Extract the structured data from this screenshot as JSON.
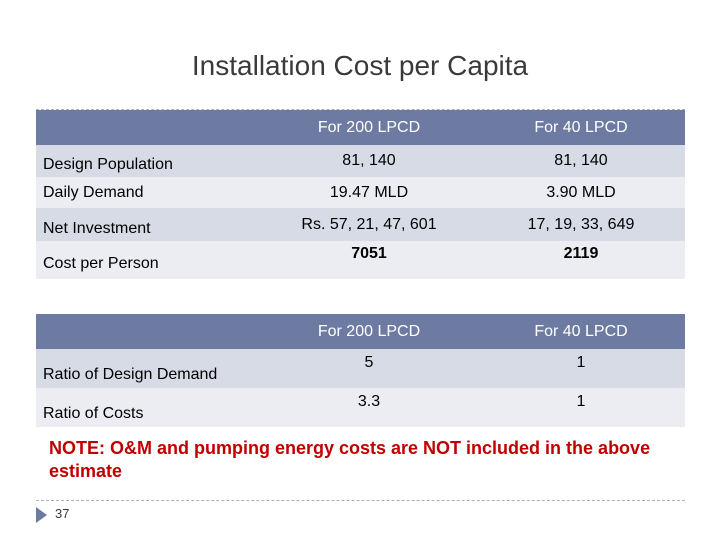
{
  "title": "Installation Cost per Capita",
  "table1": {
    "headers": [
      "",
      "For 200 LPCD",
      "For 40 LPCD"
    ],
    "rows": [
      {
        "label": "Design Population",
        "v200": "81, 140",
        "v40": "81, 140"
      },
      {
        "label": "Daily Demand",
        "v200": "19.47 MLD",
        "v40": "3.90 MLD"
      },
      {
        "label": "Net Investment",
        "v200": "Rs. 57, 21, 47, 601",
        "v40": "17, 19, 33, 649"
      },
      {
        "label": "Cost per Person",
        "v200": "7051",
        "v40": "2119"
      }
    ]
  },
  "table2": {
    "headers": [
      "",
      "For 200 LPCD",
      "For 40 LPCD"
    ],
    "rows": [
      {
        "label": "Ratio of Design Demand",
        "v200": "5",
        "v40": "1"
      },
      {
        "label": "Ratio of Costs",
        "v200": "3.3",
        "v40": "1"
      }
    ]
  },
  "note": "NOTE: O&M and pumping energy costs are NOT included in the above estimate",
  "page_number": "37",
  "colors": {
    "header": "#6d7ba2",
    "row_dark": "#d7dbe6",
    "row_light": "#ebedf3",
    "note": "#c00000"
  }
}
